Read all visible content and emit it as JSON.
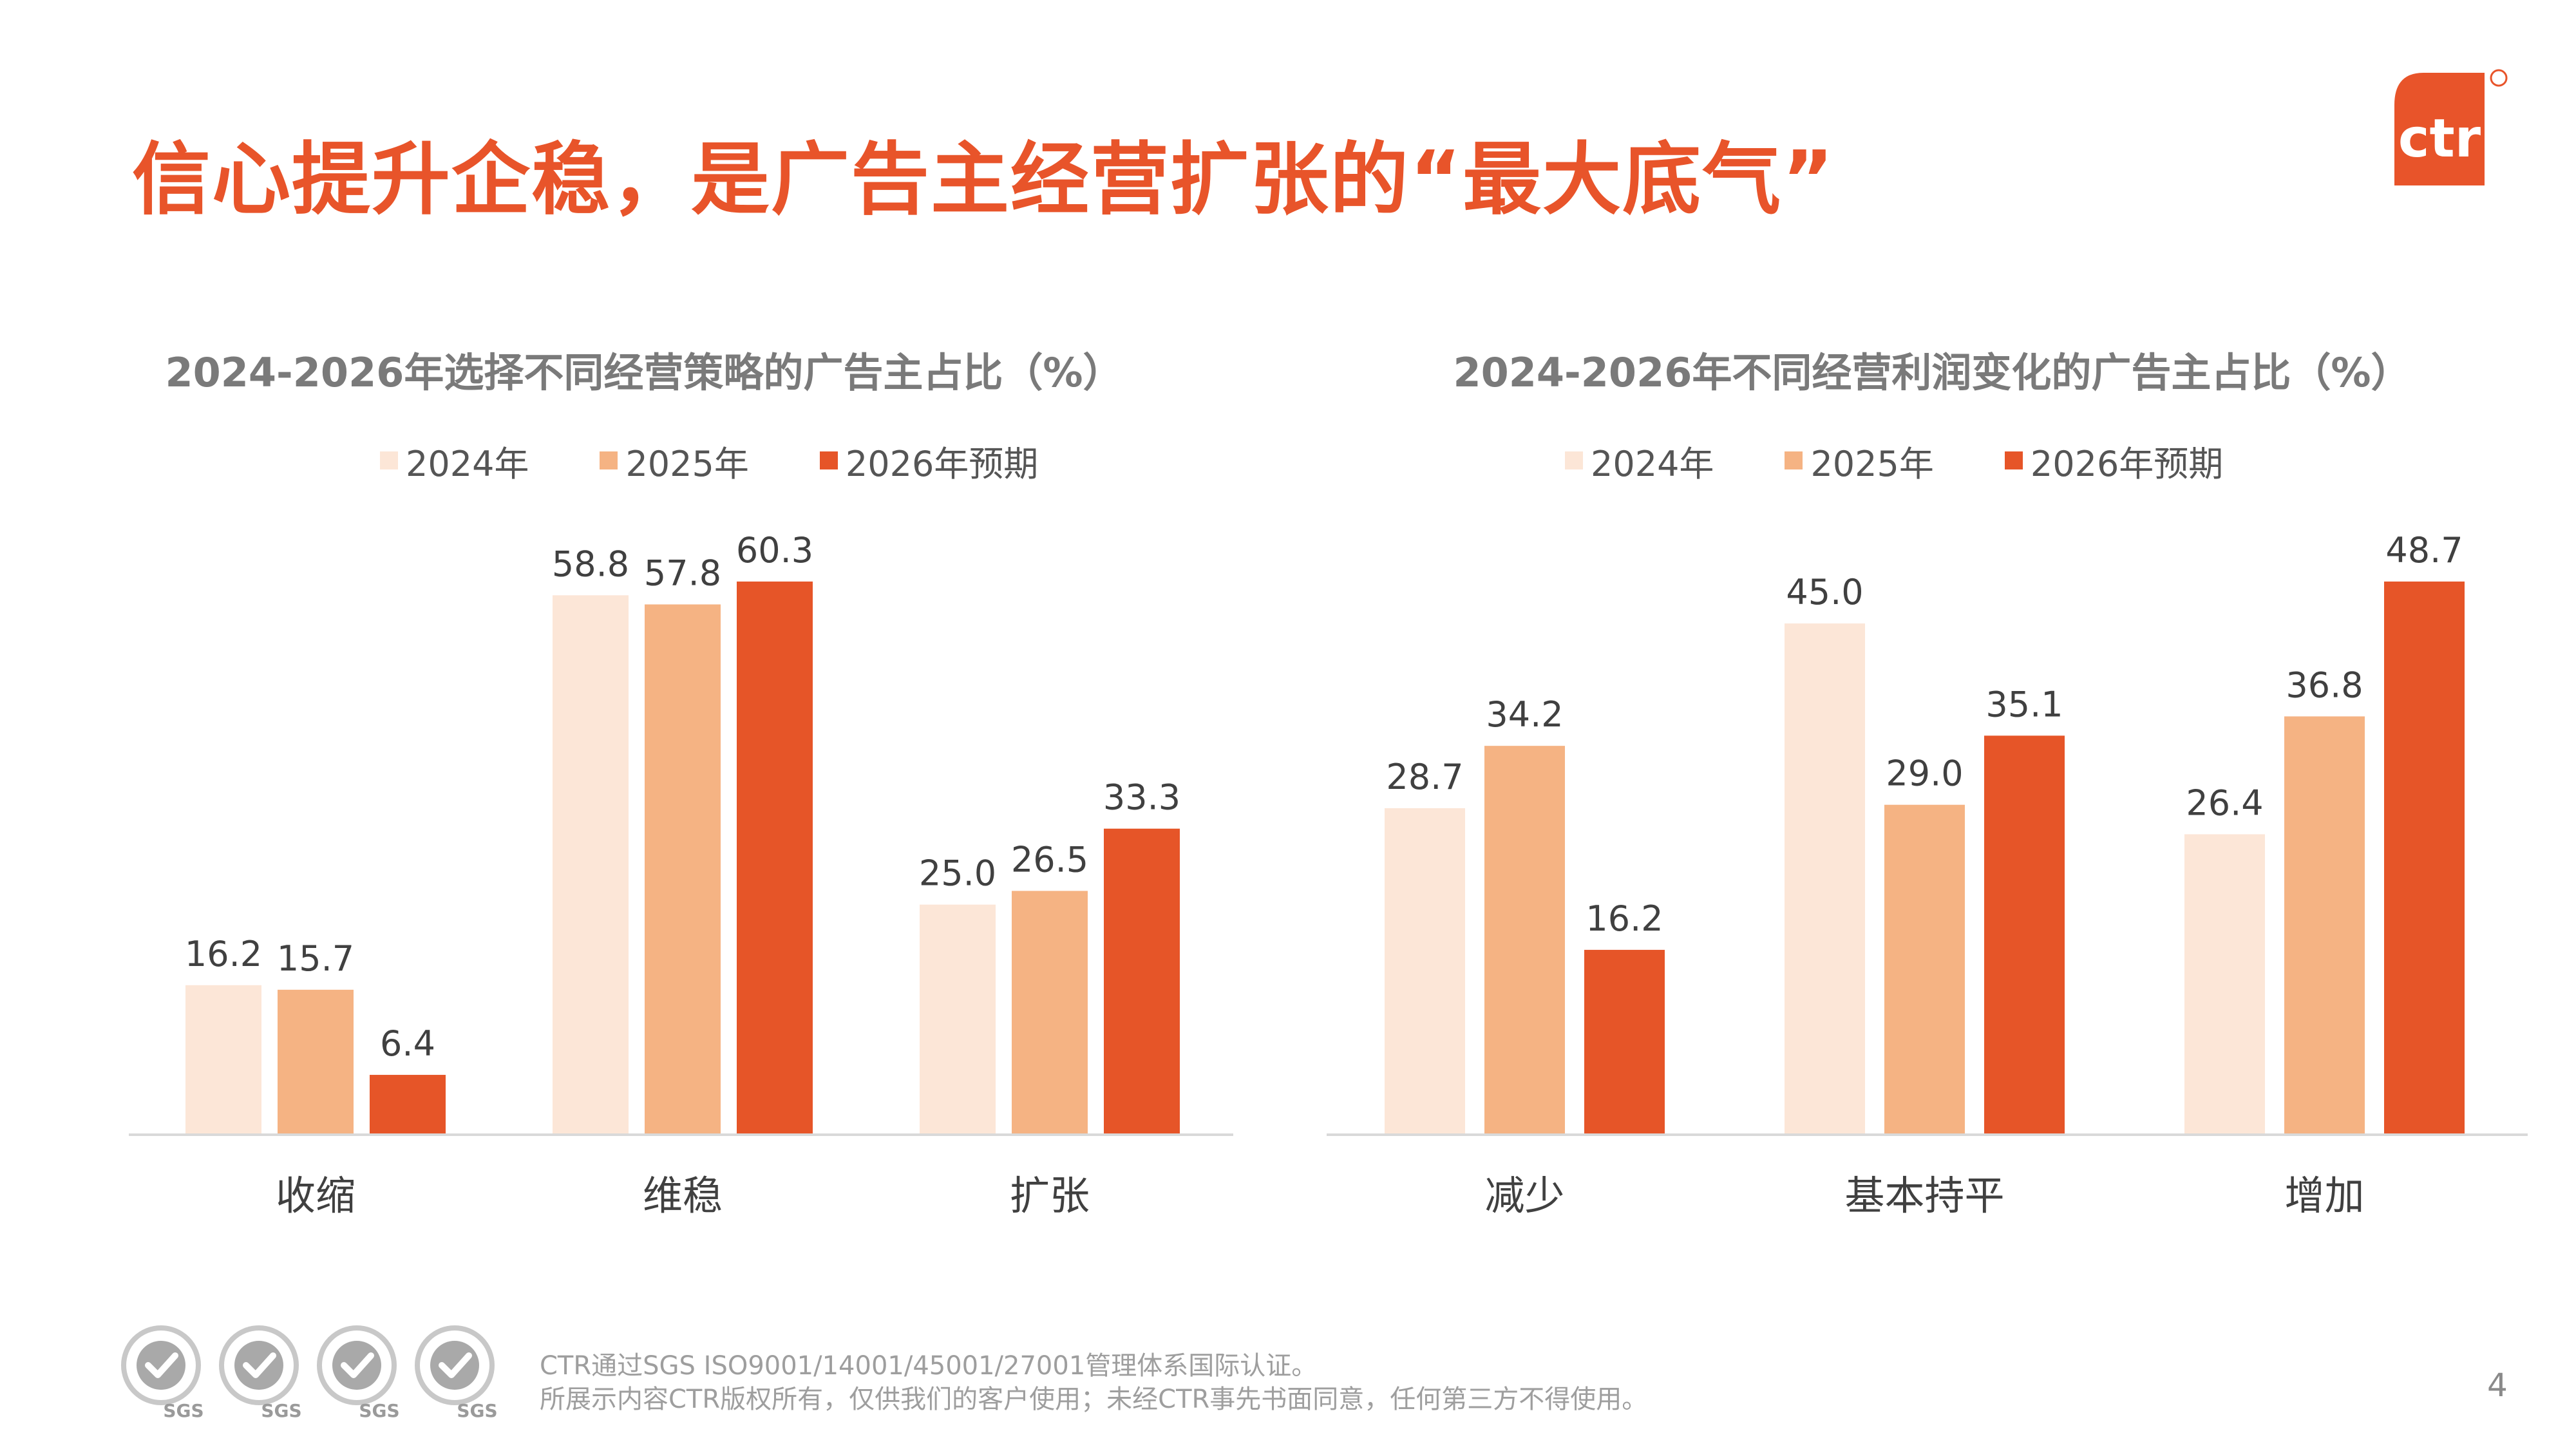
{
  "title": "信心提升企稳，是广告主经营扩张的“最大底气”",
  "logo": {
    "text": "ctr",
    "icon": "ctr-logo-icon",
    "color": "#e8542a"
  },
  "colors": {
    "accent": "#e8542a",
    "series_2024": "#fce6d7",
    "series_2025": "#f5b383",
    "series_2026": "#e65528",
    "axis": "#d9d9d9"
  },
  "chart_data": [
    {
      "type": "bar",
      "title": "2024-2026年选择不同经营策略的广告主占比（%）",
      "categories": [
        "收缩",
        "维稳",
        "扩张"
      ],
      "series": [
        {
          "name": "2024年",
          "values": [
            16.2,
            58.8,
            25.0
          ]
        },
        {
          "name": "2025年",
          "values": [
            15.7,
            57.8,
            26.5
          ]
        },
        {
          "name": "2026年预期",
          "values": [
            6.4,
            60.3,
            33.3
          ]
        }
      ],
      "xlabel": "",
      "ylabel": "",
      "ylim": [
        0,
        60.3
      ],
      "grid": false,
      "legend": "top-center"
    },
    {
      "type": "bar",
      "title": "2024-2026年不同经营利润变化的广告主占比（%）",
      "categories": [
        "减少",
        "基本持平",
        "增加"
      ],
      "series": [
        {
          "name": "2024年",
          "values": [
            28.7,
            45.0,
            26.4
          ]
        },
        {
          "name": "2025年",
          "values": [
            34.2,
            29.0,
            36.8
          ]
        },
        {
          "name": "2026年预期",
          "values": [
            16.2,
            35.1,
            48.7
          ]
        }
      ],
      "xlabel": "",
      "ylabel": "",
      "ylim": [
        0,
        48.7
      ],
      "grid": false,
      "legend": "top-center"
    }
  ],
  "footer": {
    "line1": "CTR通过SGS ISO9001/14001/45001/27001管理体系国际认证。",
    "line2": "所展示内容CTR版权所有，仅供我们的客户使用；未经CTR事先书面同意，任何第三方不得使用。",
    "certifications": [
      {
        "label": "SGS",
        "icon": "sgs-certification-badge-icon"
      },
      {
        "label": "SGS",
        "icon": "sgs-certification-badge-icon"
      },
      {
        "label": "SGS",
        "icon": "sgs-certification-badge-icon"
      },
      {
        "label": "SGS",
        "icon": "sgs-certification-badge-icon"
      }
    ]
  },
  "page_number": "4"
}
